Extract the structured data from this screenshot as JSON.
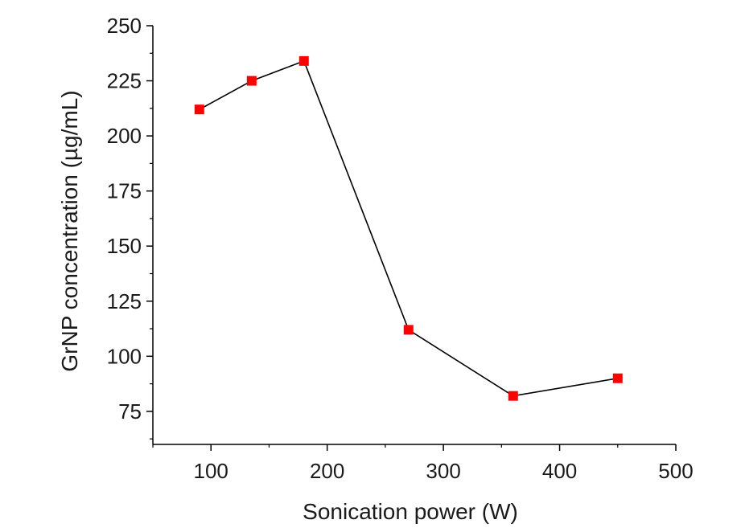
{
  "chart_data": {
    "type": "line",
    "title": "",
    "xlabel": "Sonication power (W)",
    "ylabel": "GrNP concentration (µg/mL)",
    "xlim": [
      50,
      500
    ],
    "ylim": [
      60,
      250
    ],
    "xticks": [
      100,
      200,
      300,
      400,
      500
    ],
    "yticks": [
      75,
      100,
      125,
      150,
      175,
      200,
      225,
      250
    ],
    "grid": false,
    "series": [
      {
        "x": [
          90,
          135,
          180,
          270,
          360,
          450
        ],
        "y": [
          212,
          225,
          234,
          112,
          82,
          90
        ],
        "line_color": "#000000",
        "marker": "square",
        "marker_color": "#ff0000"
      }
    ]
  }
}
